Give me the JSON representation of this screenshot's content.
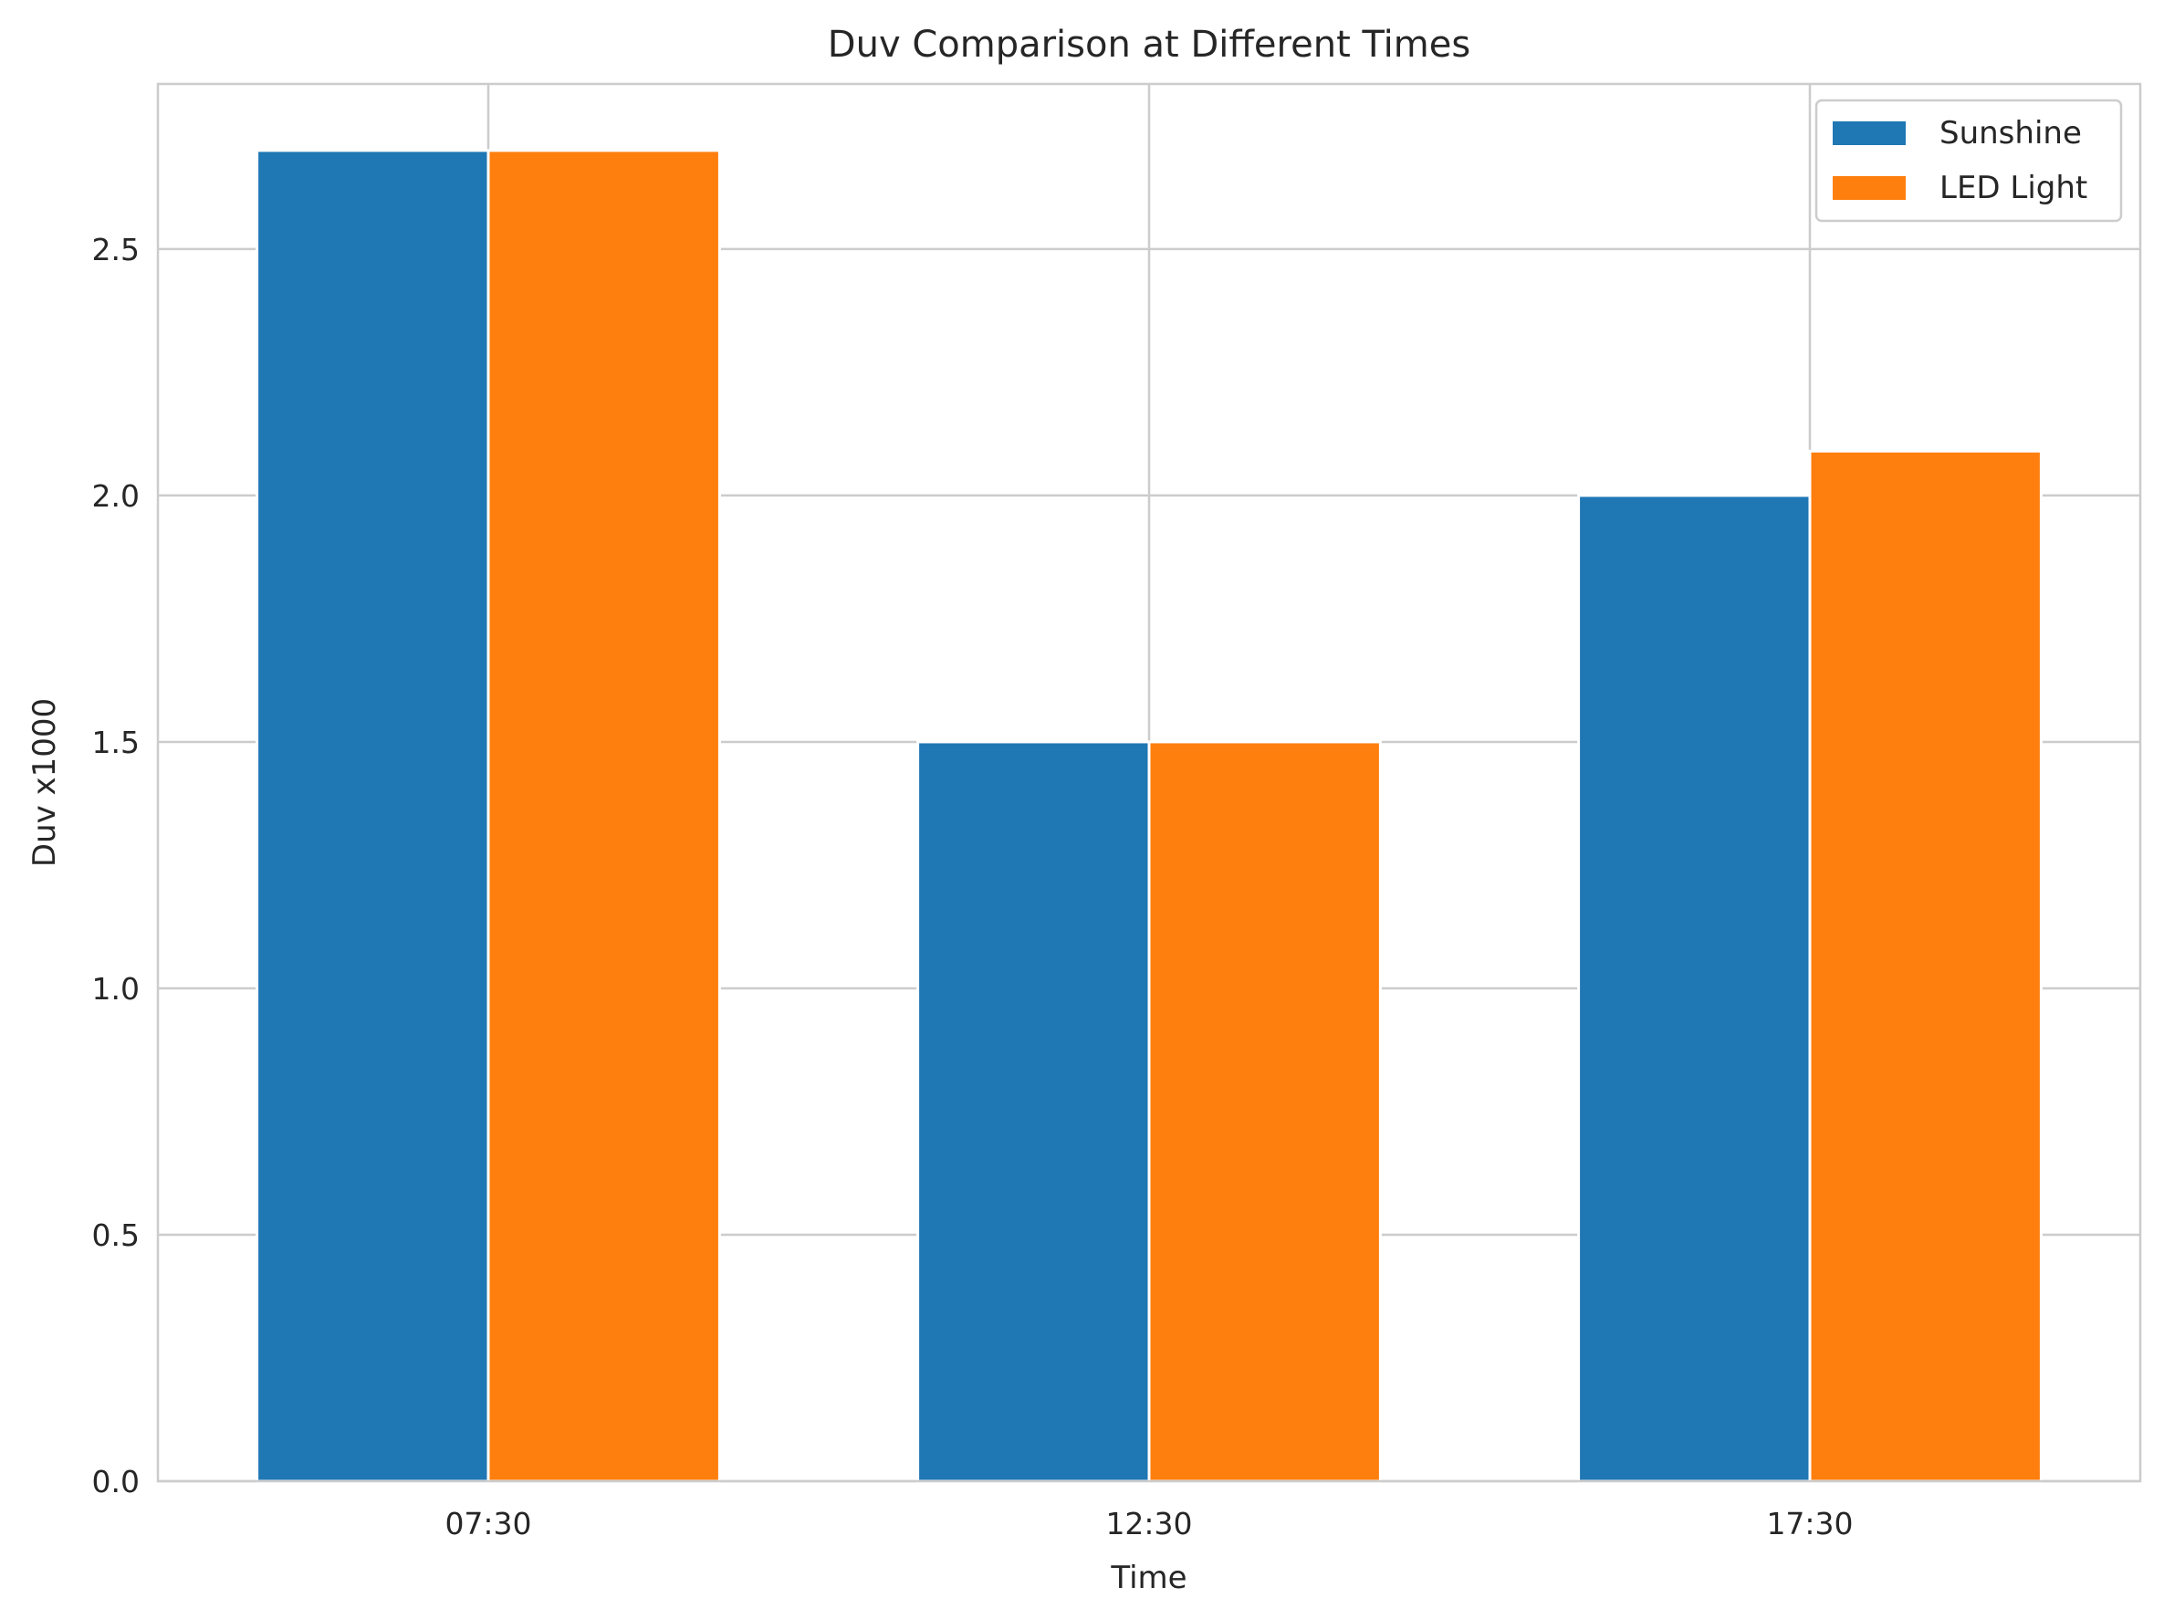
{
  "chart_data": {
    "type": "bar",
    "title": "Duv Comparison at Different Times",
    "xlabel": "Time",
    "ylabel": "Duv x1000",
    "categories": [
      "07:30",
      "12:30",
      "17:30"
    ],
    "series": [
      {
        "name": "Sunshine",
        "values": [
          2.7,
          1.5,
          2.0
        ],
        "color": "#1f77b4"
      },
      {
        "name": "LED Light",
        "values": [
          2.7,
          1.5,
          2.09
        ],
        "color": "#ff7f0e"
      }
    ],
    "ylim": [
      0,
      2.835
    ],
    "yticks": [
      0.0,
      0.5,
      1.0,
      1.5,
      2.0,
      2.5
    ],
    "ytick_labels": [
      "0.0",
      "0.5",
      "1.0",
      "1.5",
      "2.0",
      "2.5"
    ],
    "grid": true,
    "legend_position": "top-right"
  }
}
